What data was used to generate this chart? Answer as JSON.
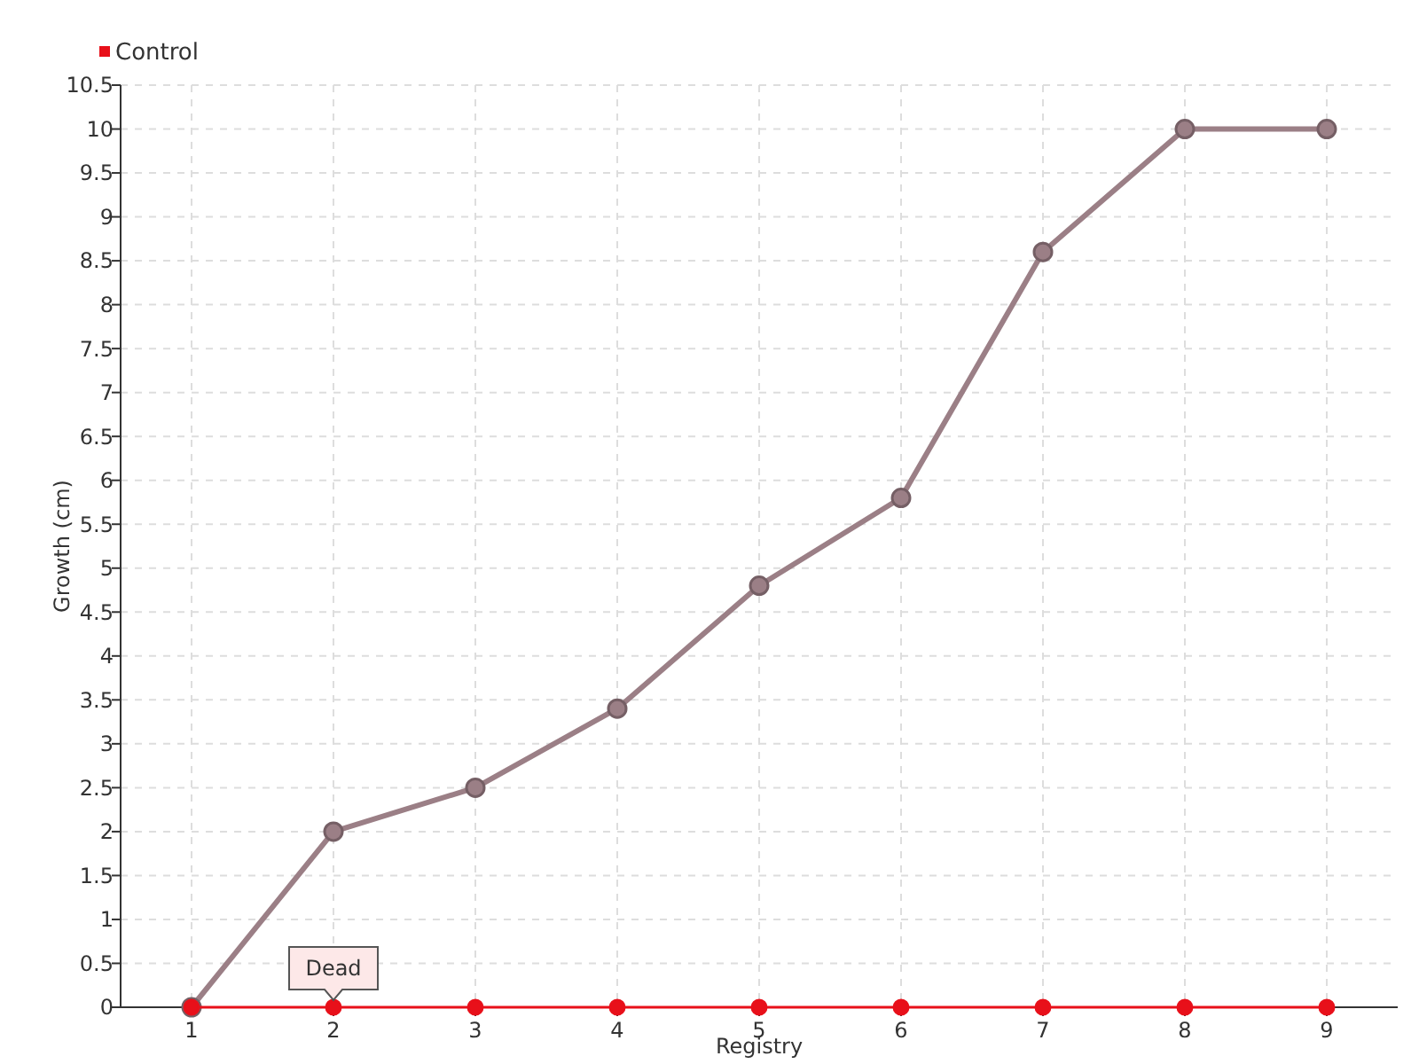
{
  "chart_data": {
    "type": "line",
    "xlabel": "Registry",
    "ylabel": "Growth (cm)",
    "categories": [
      "1",
      "2",
      "3",
      "4",
      "5",
      "6",
      "7",
      "8",
      "9"
    ],
    "series": [
      {
        "color": "#9b7f86",
        "values": [
          0,
          2,
          2.5,
          3.4,
          4.8,
          5.8,
          8.6,
          10,
          10
        ]
      },
      {
        "name": "Control",
        "color": "#e8101a",
        "values": [
          0,
          0,
          0,
          0,
          0,
          0,
          0,
          0,
          0
        ]
      }
    ],
    "ylim": [
      0,
      10.5
    ],
    "yticks": [
      0,
      0.5,
      1,
      1.5,
      2,
      2.5,
      3,
      3.5,
      4,
      4.5,
      5,
      5.5,
      6,
      6.5,
      7,
      7.5,
      8,
      8.5,
      9,
      9.5,
      10,
      10.5
    ],
    "grid": true,
    "legend": "top left",
    "marker": "circle",
    "line_style": "solid",
    "annotations": [
      {
        "text": "Dead",
        "x": "2",
        "y": 0
      }
    ]
  }
}
